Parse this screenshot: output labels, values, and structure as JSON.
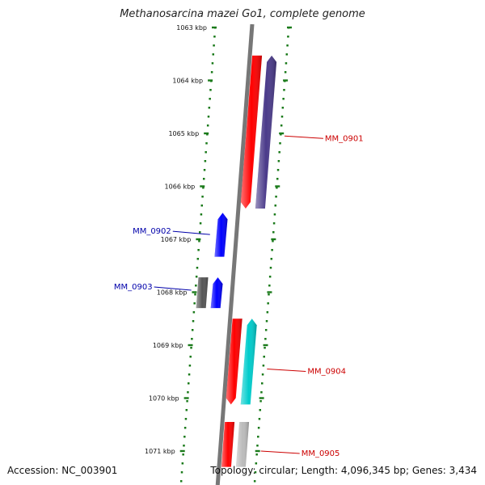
{
  "title": "Methanosarcina mazei Go1, complete genome",
  "footer": {
    "accession": "Accession: NC_003901",
    "summary": "Topology: circular; Length: 4,096,345 bp; Genes: 3,434"
  },
  "scale": {
    "start_kbp": 1063,
    "end_kbp": 1071,
    "labels": [
      "1063 kbp",
      "1064 kbp",
      "1065 kbp",
      "1066 kbp",
      "1067 kbp",
      "1068 kbp",
      "1069 kbp",
      "1070 kbp",
      "1071 kbp"
    ]
  },
  "genes": [
    {
      "id": "g1",
      "strand": "-",
      "ring": "outer",
      "start_kbp": 1063.53,
      "end_kbp": 1066.42,
      "color": "#ff0000",
      "label": ""
    },
    {
      "id": "g2",
      "strand": "+",
      "ring": "outer2",
      "start_kbp": 1063.53,
      "end_kbp": 1066.42,
      "color": "#4a3a8a",
      "label": "MM_0901",
      "label_color": "#cc0000",
      "label_side": "right",
      "label_kbp": 1065.05
    },
    {
      "id": "g3",
      "strand": "+",
      "ring": "inner",
      "start_kbp": 1066.5,
      "end_kbp": 1067.33,
      "color": "#0000ff",
      "label": "MM_0902",
      "label_color": "#0000aa",
      "label_side": "left",
      "label_kbp": 1066.85
    },
    {
      "id": "g4",
      "strand": "none",
      "ring": "inner2",
      "start_kbp": 1067.72,
      "end_kbp": 1068.3,
      "color": "#555555",
      "label": "MM_0903",
      "label_color": "#0000aa",
      "label_side": "left",
      "label_kbp": 1067.9
    },
    {
      "id": "g5",
      "strand": "+",
      "ring": "inner",
      "start_kbp": 1067.72,
      "end_kbp": 1068.3,
      "color": "#0000ff",
      "label": ""
    },
    {
      "id": "g6",
      "strand": "-",
      "ring": "outer",
      "start_kbp": 1068.5,
      "end_kbp": 1070.12,
      "color": "#ff0000",
      "label": ""
    },
    {
      "id": "g7",
      "strand": "+",
      "ring": "outer2",
      "start_kbp": 1068.5,
      "end_kbp": 1070.12,
      "color": "#00cccc",
      "label": "MM_0904",
      "label_color": "#cc0000",
      "label_side": "right",
      "label_kbp": 1069.45
    },
    {
      "id": "g8",
      "strand": "none",
      "ring": "outer",
      "start_kbp": 1070.45,
      "end_kbp": 1071.3,
      "color": "#ff0000",
      "label": ""
    },
    {
      "id": "g9",
      "strand": "none",
      "ring": "outer2",
      "start_kbp": 1070.45,
      "end_kbp": 1071.3,
      "color": "#bbbbbb",
      "label": "MM_0905",
      "label_color": "#cc0000",
      "label_side": "right",
      "label_kbp": 1071.0
    }
  ],
  "colors": {
    "backbone": "#777777",
    "scale_dots": "#1a7a1a"
  }
}
